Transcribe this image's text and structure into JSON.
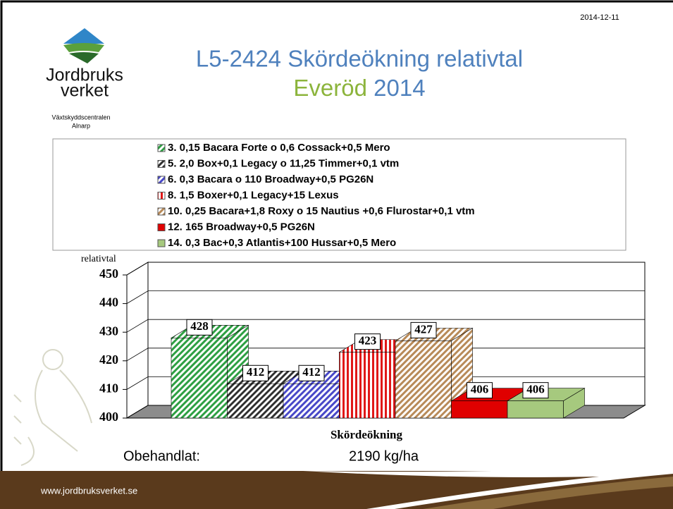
{
  "slide": {
    "date": "2014-12-11",
    "logo_line1": "Jordbruks",
    "logo_line2": "verket",
    "org_line1": "Växtskyddscentralen",
    "org_line2": "Alnarp",
    "footer": "www.jordbruksverket.se",
    "note_label": "Obehandlat:",
    "note_value": "2190 kg/ha"
  },
  "chart_data": {
    "type": "bar3d",
    "title": "L5-2424 Skördeökning relativtal",
    "subtitle_place": "Everöd",
    "subtitle_year": "2014",
    "y_label": "relativtal",
    "x_label": "Skördeökning",
    "ylim": [
      400,
      450
    ],
    "yticks": [
      400,
      410,
      420,
      430,
      440,
      450
    ],
    "grid": true,
    "series": [
      {
        "name": "3. 0,15 Bacara Forte o 0,6 Cossack+0,5 Mero",
        "color": "#2ea043",
        "pattern": "diagonal",
        "values": [
          428
        ]
      },
      {
        "name": "5. 2,0 Box+0,1 Legacy o 11,25 Timmer+0,1 vtm",
        "color": "#303030",
        "pattern": "diagonal",
        "values": [
          412
        ]
      },
      {
        "name": "6. 0,3 Bacara o 110 Broadway+0,5 PG26N",
        "color": "#4848c8",
        "pattern": "diagonal",
        "values": [
          412
        ]
      },
      {
        "name": "8.  1,5 Boxer+0,1 Legacy+15 Lexus",
        "color": "#e01818",
        "pattern": "vertical",
        "values": [
          423
        ]
      },
      {
        "name": "10. 0,25 Bacara+1,8 Roxy o 15 Nautius +0,6 Flurostar+0,1 vtm",
        "color": "#b88a58",
        "pattern": "diagonal",
        "values": [
          427
        ]
      },
      {
        "name": "12. 165 Broadway+0,5 PG26N",
        "color": "#e00000",
        "pattern": "solid",
        "values": [
          406
        ]
      },
      {
        "name": "14. 0,3 Bac+0,3 Atlantis+100 Hussar+0,5 Mero",
        "color": "#a6c97e",
        "pattern": "solid",
        "values": [
          406
        ]
      }
    ]
  }
}
